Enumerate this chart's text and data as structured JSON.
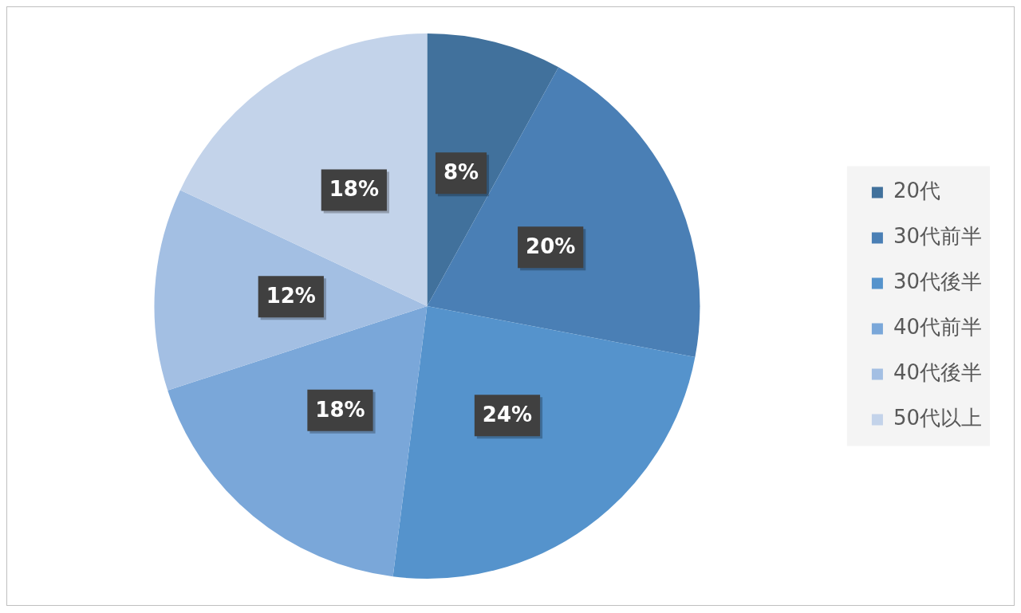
{
  "chart_data": {
    "type": "pie",
    "categories": [
      "20代",
      "30代前半",
      "30代後半",
      "40代前半",
      "40代後半",
      "50代以上"
    ],
    "values": [
      8,
      20,
      24,
      18,
      12,
      18
    ],
    "colors": [
      "#41719c",
      "#4a7fb5",
      "#5593cc",
      "#7aa7d9",
      "#a3bfe3",
      "#c3d3ea"
    ],
    "value_labels": [
      "8%",
      "20%",
      "24%",
      "18%",
      "12%",
      "18%"
    ],
    "legend": "right"
  }
}
